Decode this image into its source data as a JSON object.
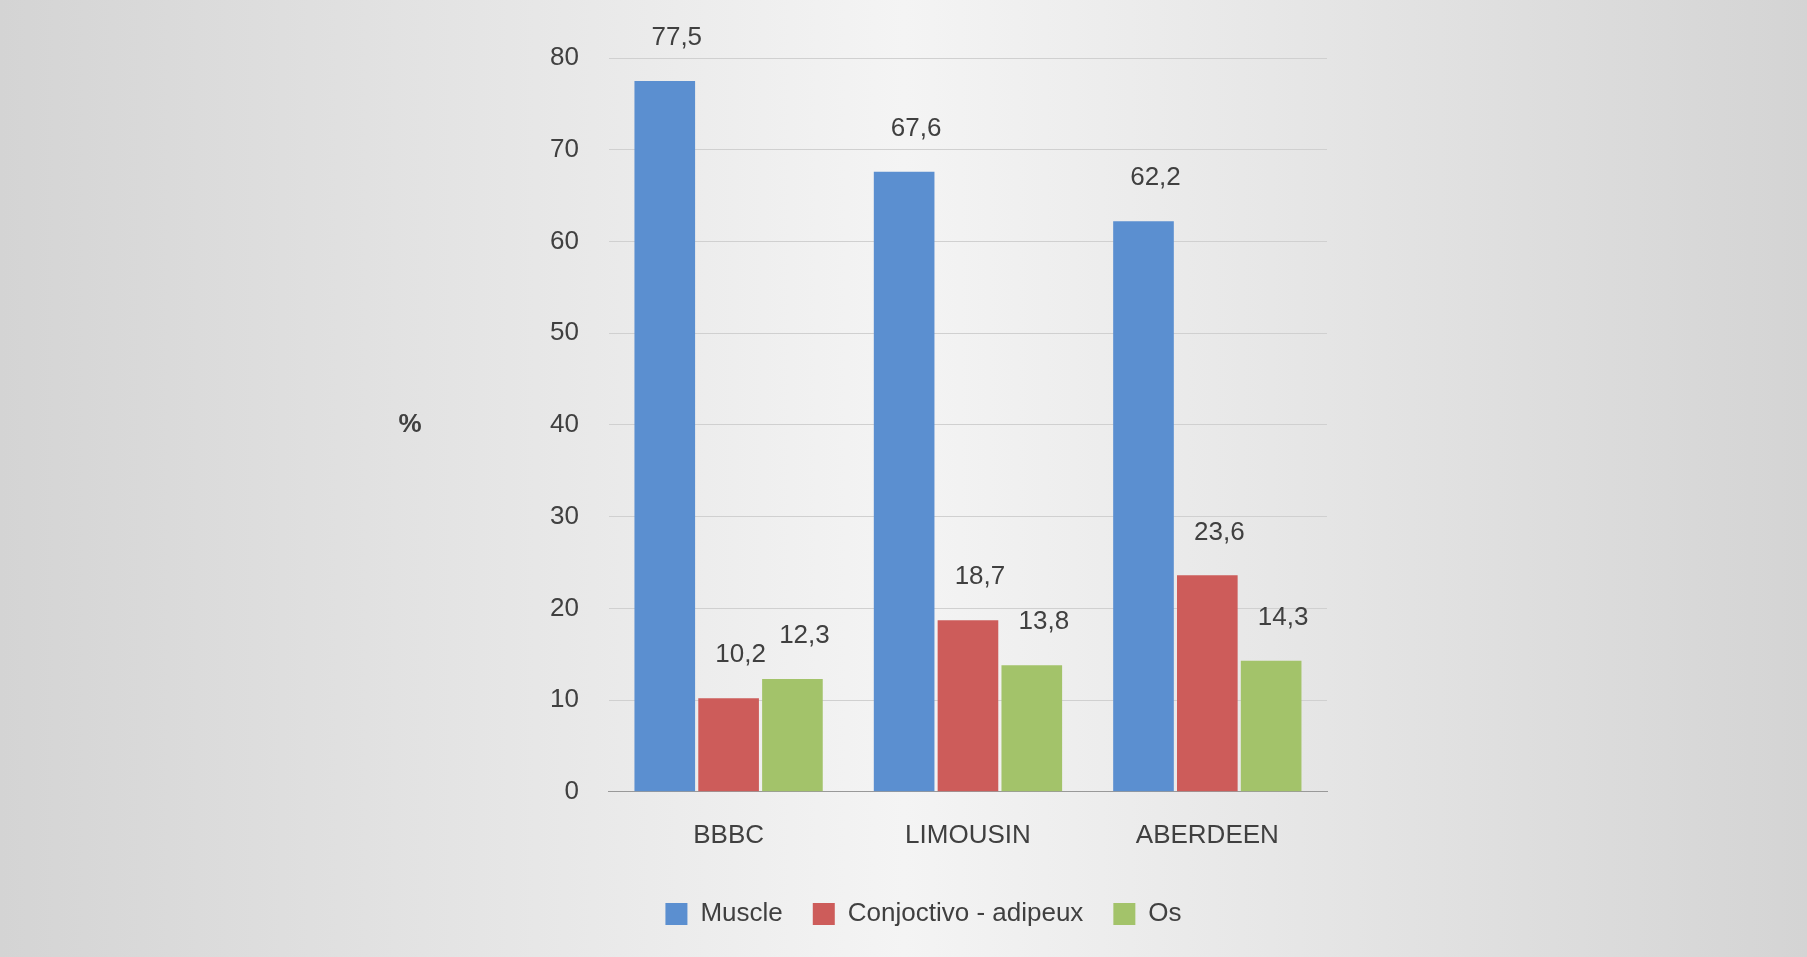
{
  "chart_data": {
    "type": "bar",
    "ylabel": "%",
    "categories": [
      "BBBC",
      "LIMOUSIN",
      "ABERDEEN"
    ],
    "series": [
      {
        "name": "Muscle",
        "color": "#5b8fd0",
        "values": [
          77.5,
          67.6,
          62.2
        ],
        "value_labels": [
          "77,5",
          "67,6",
          "62,2"
        ]
      },
      {
        "name": "Conjoctivo - adipeux",
        "color": "#cd5c5a",
        "values": [
          10.2,
          18.7,
          23.6
        ],
        "value_labels": [
          "10,2",
          "18,7",
          "23,6"
        ]
      },
      {
        "name": "Os",
        "color": "#a3c36a",
        "values": [
          12.3,
          13.8,
          14.3
        ],
        "value_labels": [
          "12,3",
          "13,8",
          "14,3"
        ]
      }
    ],
    "ylim": [
      0,
      80
    ],
    "yticks": [
      0,
      10,
      20,
      30,
      40,
      50,
      60,
      70,
      80
    ],
    "grid": "y",
    "legend": "bottom"
  }
}
